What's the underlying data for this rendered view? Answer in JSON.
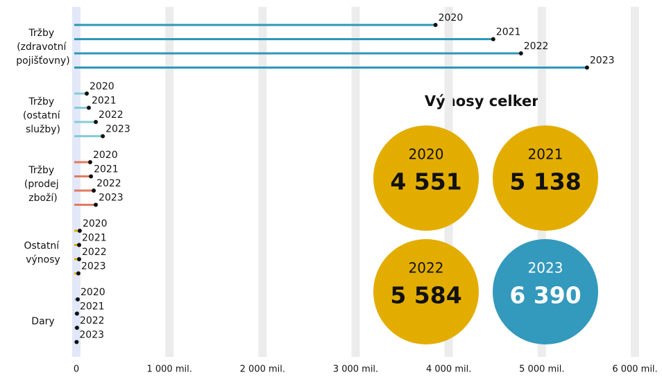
{
  "chart_data": {
    "type": "lollipop",
    "categories": [
      "Tržby (zdravotní pojišťovny)",
      "Tržby (ostatní služby)",
      "Tržby (prodej zboží)",
      "Ostatní výnosy",
      "Dary"
    ],
    "colors": [
      "#2e96b9",
      "#85ccd6",
      "#e07a5f",
      "#e3a900",
      "#a8d8e0"
    ],
    "series": [
      {
        "name": "2020",
        "values": [
          3858,
          112,
          149,
          37,
          15
        ]
      },
      {
        "name": "2021",
        "values": [
          4478,
          134,
          157,
          30,
          7
        ]
      },
      {
        "name": "2022",
        "values": [
          4776,
          209,
          187,
          30,
          7
        ]
      },
      {
        "name": "2023",
        "values": [
          5485,
          284,
          209,
          22,
          3
        ]
      }
    ],
    "xlim": [
      0,
      6000
    ],
    "xticks": [
      0,
      {
        "value": 1000,
        "label": "1 000 mil."
      },
      {
        "value": 2000,
        "label": "2 000 mil."
      },
      {
        "value": 3000,
        "label": "3 000 mil."
      },
      {
        "value": 4000,
        "label": "4 000 mil."
      },
      {
        "value": 5000,
        "label": "5 000 mil."
      },
      {
        "value": 6000,
        "label": "6 000 mil."
      }
    ],
    "totals": {
      "title": "Výnosy celkem",
      "years": [
        "2020",
        "2021",
        "2022",
        "2023"
      ],
      "values": [
        4551,
        5138,
        5584,
        6390
      ],
      "value_labels": [
        "4 551",
        "5 138",
        "5 584",
        "6 390"
      ],
      "colors": [
        "#e3ad00",
        "#e3ad00",
        "#e3ad00",
        "#3399bd"
      ]
    }
  }
}
